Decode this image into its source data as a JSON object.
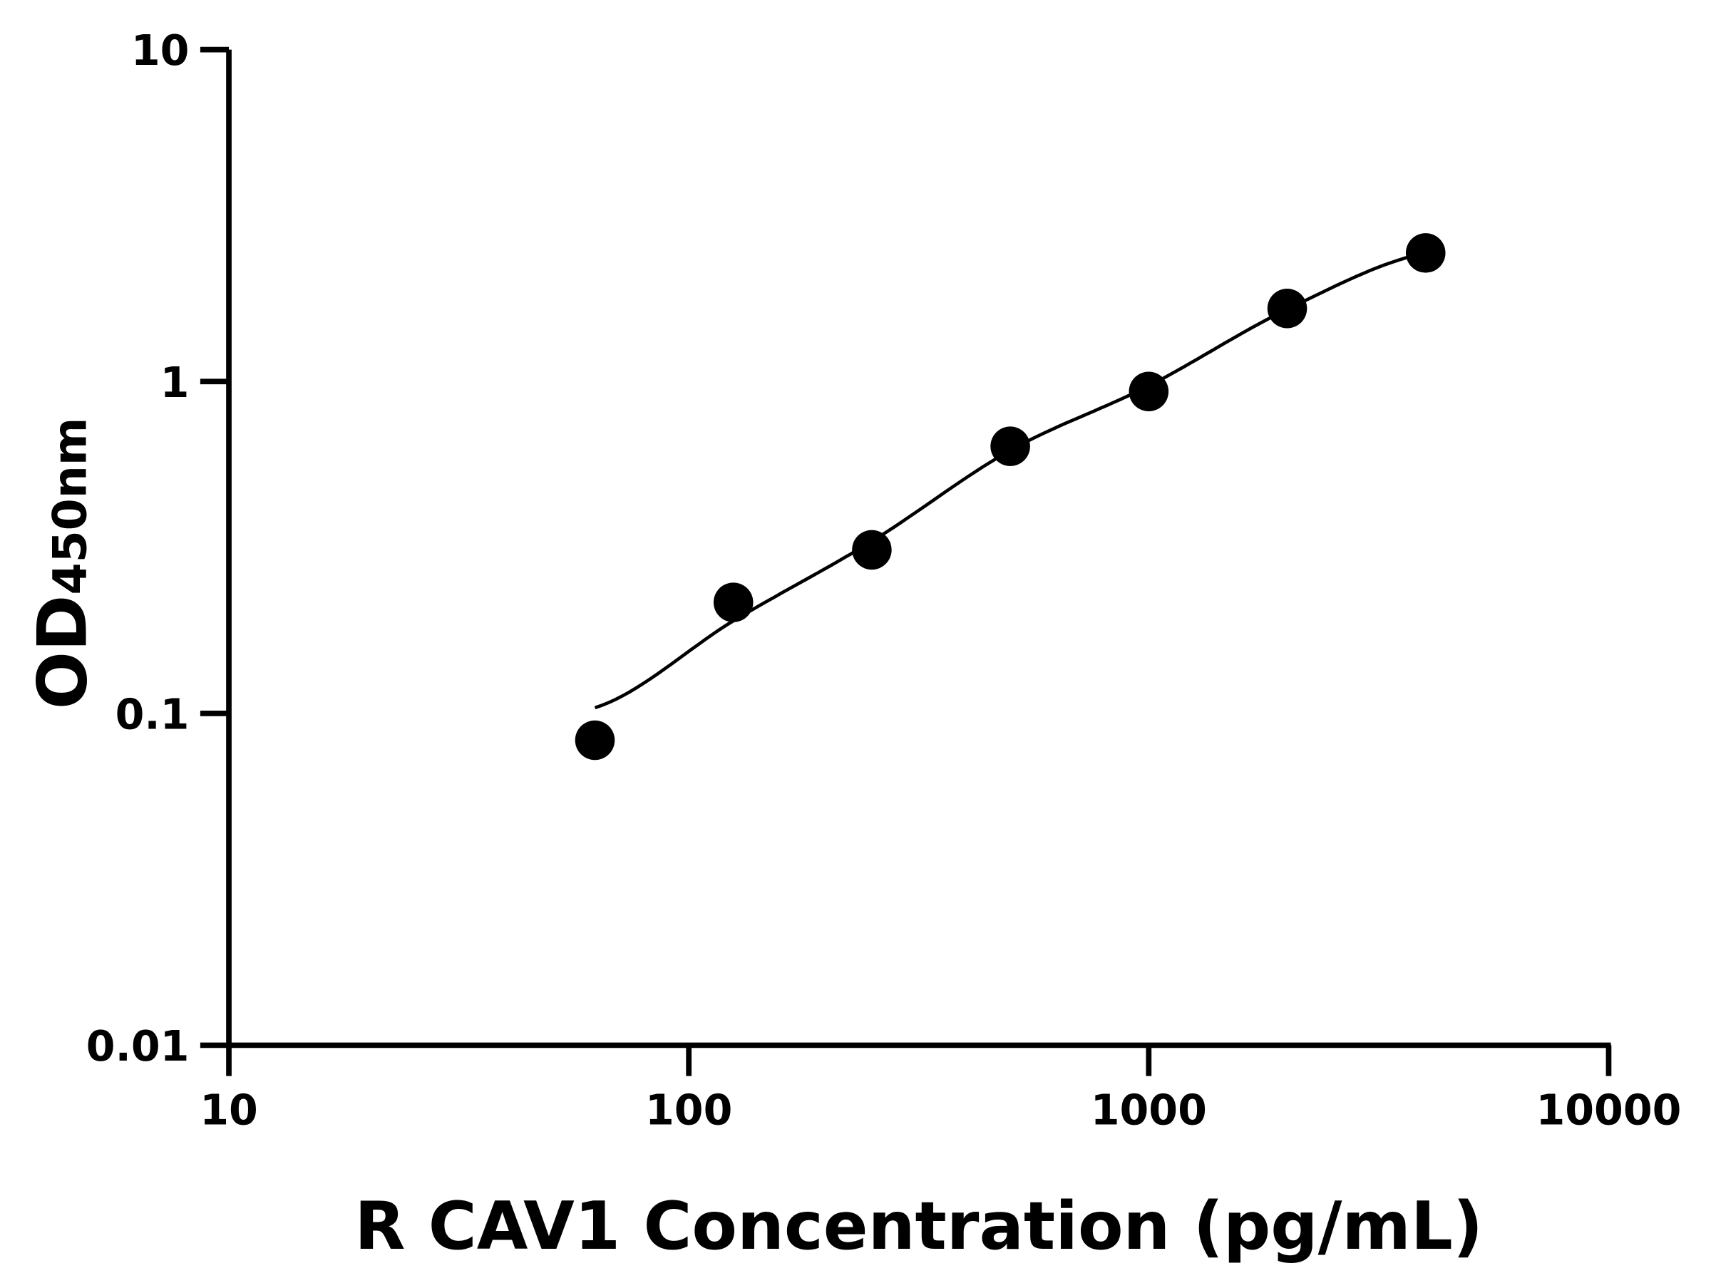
{
  "chart_data": {
    "type": "scatter",
    "title": "",
    "xlabel": "R CAV1 Concentration (pg/mL)",
    "ylabel_main": "OD",
    "ylabel_sub": "450nm",
    "x_scale": "log",
    "y_scale": "log",
    "xlim": [
      10,
      10000
    ],
    "ylim": [
      0.01,
      10
    ],
    "x_ticks": [
      "10",
      "100",
      "1000",
      "10000"
    ],
    "y_ticks": [
      "0.01",
      "0.1",
      "1",
      "10"
    ],
    "grid": false,
    "legend": "none",
    "points": {
      "x": [
        62.5,
        125,
        250,
        500,
        1000,
        2000,
        4000
      ],
      "y": [
        0.083,
        0.216,
        0.311,
        0.638,
        0.933,
        1.66,
        2.44
      ]
    },
    "fit_line": {
      "x": [
        62.5,
        125,
        250,
        500,
        1000,
        2000,
        4000
      ],
      "y": [
        0.104,
        0.19,
        0.33,
        0.62,
        0.97,
        1.65,
        2.44
      ]
    },
    "color": "#000000"
  }
}
